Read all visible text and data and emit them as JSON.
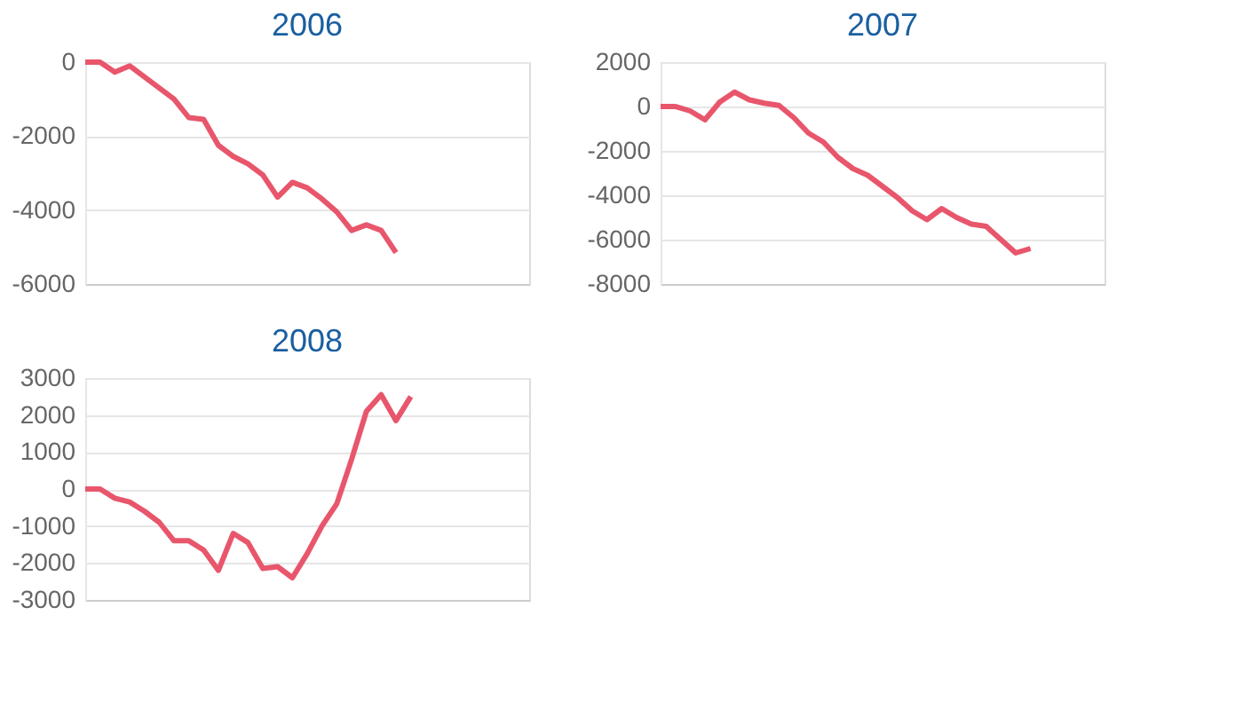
{
  "chart_data": [
    {
      "type": "line",
      "title": "2006",
      "categories": [
        null,
        null,
        null,
        null,
        null,
        null,
        null,
        null,
        null,
        null,
        null,
        null,
        null,
        null,
        null,
        null,
        null,
        null,
        null,
        null,
        null,
        null,
        null,
        null,
        null,
        null,
        null,
        null,
        null,
        null,
        null
      ],
      "series": [
        {
          "color": "#e8566c",
          "values": [
            0,
            0,
            -270,
            -100,
            -400,
            -700,
            -1000,
            -1500,
            -1550,
            -2250,
            -2550,
            -2750,
            -3050,
            -3650,
            -3250,
            -3400,
            -3700,
            -4050,
            -4550,
            -4400,
            -4550,
            -5150,
            null,
            null,
            null,
            null,
            null,
            null,
            null,
            null,
            null
          ]
        }
      ],
      "ylim": [
        -6000,
        0
      ],
      "yticks": [
        0,
        -2000,
        -4000,
        -6000
      ],
      "grid": "y",
      "tick_labels": "y",
      "marker": "none",
      "line_style": "solid"
    },
    {
      "type": "line",
      "title": "2007",
      "categories": [
        null,
        null,
        null,
        null,
        null,
        null,
        null,
        null,
        null,
        null,
        null,
        null,
        null,
        null,
        null,
        null,
        null,
        null,
        null,
        null,
        null,
        null,
        null,
        null,
        null,
        null,
        null,
        null,
        null,
        null,
        null
      ],
      "series": [
        {
          "color": "#e8566c",
          "values": [
            0,
            0,
            -200,
            -600,
            200,
            650,
            300,
            150,
            50,
            -500,
            -1200,
            -1600,
            -2300,
            -2800,
            -3100,
            -3600,
            -4100,
            -4700,
            -5100,
            -4600,
            -5000,
            -5300,
            -5400,
            -6000,
            -6600,
            -6400,
            null,
            null,
            null,
            null,
            null
          ]
        }
      ],
      "ylim": [
        -8000,
        2000
      ],
      "yticks": [
        2000,
        0,
        -2000,
        -4000,
        -6000,
        -8000
      ],
      "grid": "y",
      "tick_labels": "y",
      "marker": "none",
      "line_style": "solid"
    },
    {
      "type": "line",
      "title": "2008",
      "categories": [
        null,
        null,
        null,
        null,
        null,
        null,
        null,
        null,
        null,
        null,
        null,
        null,
        null,
        null,
        null,
        null,
        null,
        null,
        null,
        null,
        null,
        null,
        null,
        null,
        null,
        null,
        null,
        null,
        null,
        null,
        null
      ],
      "series": [
        {
          "color": "#e8566c",
          "values": [
            0,
            0,
            -250,
            -350,
            -600,
            -900,
            -1400,
            -1400,
            -1650,
            -2200,
            -1200,
            -1450,
            -2150,
            -2100,
            -2400,
            -1750,
            -1000,
            -400,
            800,
            2100,
            2550,
            1850,
            2500,
            null,
            null,
            null,
            null,
            null,
            null,
            null,
            null
          ]
        }
      ],
      "ylim": [
        -3000,
        3000
      ],
      "yticks": [
        3000,
        2000,
        1000,
        0,
        -1000,
        -2000,
        -3000
      ],
      "grid": "y",
      "tick_labels": "y",
      "marker": "none",
      "line_style": "solid"
    }
  ]
}
